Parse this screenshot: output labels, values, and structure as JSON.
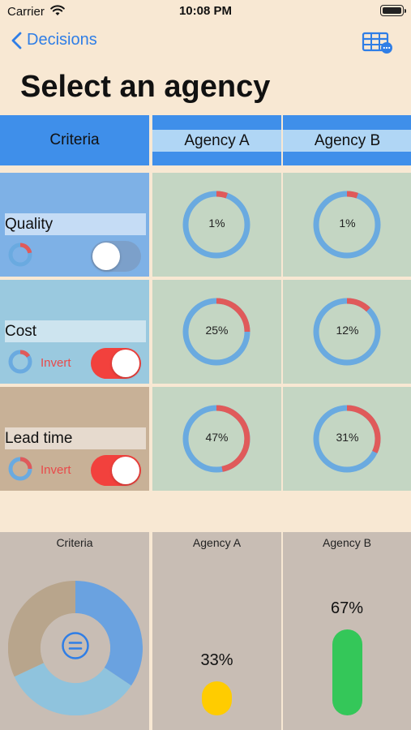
{
  "status": {
    "carrier": "Carrier",
    "time": "10:08 PM"
  },
  "nav": {
    "back_label": "Decisions"
  },
  "title": "Select an agency",
  "table": {
    "criteria_header": "Criteria",
    "agencies": [
      "Agency A",
      "Agency B"
    ],
    "criteria": [
      {
        "name": "Quality",
        "inverted": false,
        "invert_label": "",
        "cell_color": "#7eb1e6",
        "scores": [
          "1%",
          "1%"
        ],
        "score_fractions": [
          0.01,
          0.01
        ]
      },
      {
        "name": "Cost",
        "inverted": true,
        "invert_label": "Invert",
        "cell_color": "#9ac9df",
        "scores": [
          "25%",
          "12%"
        ],
        "score_fractions": [
          0.25,
          0.12
        ]
      },
      {
        "name": "Lead time",
        "inverted": true,
        "invert_label": "Invert",
        "cell_color": "#c8b197",
        "scores": [
          "47%",
          "31%"
        ],
        "score_fractions": [
          0.47,
          0.31
        ]
      }
    ]
  },
  "summary": {
    "criteria_title": "Criteria",
    "agency_titles": [
      "Agency A",
      "Agency B"
    ],
    "results": [
      "33%",
      "67%"
    ],
    "result_fractions": [
      0.33,
      0.67
    ],
    "result_colors": [
      "#ffcc00",
      "#34c759"
    ],
    "weight_fractions": [
      0.37,
      0.33,
      0.3
    ],
    "weight_colors": [
      "#6aa2e0",
      "#8fc3dd",
      "#b8a58c"
    ]
  },
  "colors": {
    "accent": "#2f7ee6",
    "ring_track": "#6aaae0",
    "ring_value": "#e05a5a"
  }
}
